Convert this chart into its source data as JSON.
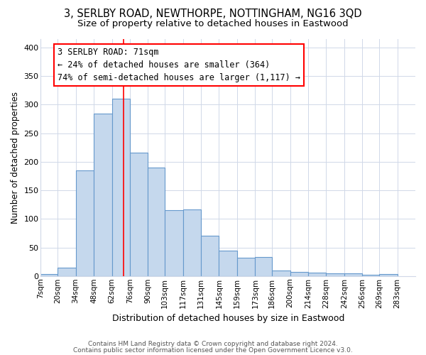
{
  "title1": "3, SERLBY ROAD, NEWTHORPE, NOTTINGHAM, NG16 3QD",
  "title2": "Size of property relative to detached houses in Eastwood",
  "xlabel": "Distribution of detached houses by size in Eastwood",
  "ylabel": "Number of detached properties",
  "footer1": "Contains HM Land Registry data © Crown copyright and database right 2024.",
  "footer2": "Contains public sector information licensed under the Open Government Licence v3.0.",
  "annotation_line1": "3 SERLBY ROAD: 71sqm",
  "annotation_line2": "← 24% of detached houses are smaller (364)",
  "annotation_line3": "74% of semi-detached houses are larger (1,117) →",
  "bar_left_edges": [
    7,
    20,
    34,
    48,
    62,
    76,
    90,
    103,
    117,
    131,
    145,
    159,
    173,
    186,
    200,
    214,
    228,
    242,
    256,
    269
  ],
  "bar_heights": [
    3,
    15,
    185,
    285,
    311,
    216,
    190,
    115,
    116,
    70,
    45,
    32,
    33,
    10,
    7,
    6,
    5,
    5,
    2,
    4
  ],
  "bar_widths": [
    13,
    14,
    14,
    14,
    14,
    14,
    13,
    14,
    14,
    14,
    14,
    14,
    13,
    14,
    14,
    14,
    14,
    14,
    13,
    14
  ],
  "bar_color": "#c5d8ed",
  "bar_edge_color": "#6699cc",
  "marker_x": 71,
  "marker_color": "red",
  "ylim": [
    0,
    415
  ],
  "xlim": [
    7,
    297
  ],
  "yticks": [
    0,
    50,
    100,
    150,
    200,
    250,
    300,
    350,
    400
  ],
  "tick_labels": [
    "7sqm",
    "20sqm",
    "34sqm",
    "48sqm",
    "62sqm",
    "76sqm",
    "90sqm",
    "103sqm",
    "117sqm",
    "131sqm",
    "145sqm",
    "159sqm",
    "173sqm",
    "186sqm",
    "200sqm",
    "214sqm",
    "228sqm",
    "242sqm",
    "256sqm",
    "269sqm",
    "283sqm"
  ],
  "tick_positions": [
    7,
    20,
    34,
    48,
    62,
    76,
    90,
    103,
    117,
    131,
    145,
    159,
    173,
    186,
    200,
    214,
    228,
    242,
    256,
    269,
    283
  ],
  "bg_color": "#ffffff",
  "plot_bg_color": "#ffffff",
  "grid_color": "#d0d8e8",
  "title1_fontsize": 10.5,
  "title2_fontsize": 9.5,
  "ann_fontsize": 8.5,
  "xlabel_fontsize": 9,
  "ylabel_fontsize": 8.5,
  "footer_fontsize": 6.5
}
